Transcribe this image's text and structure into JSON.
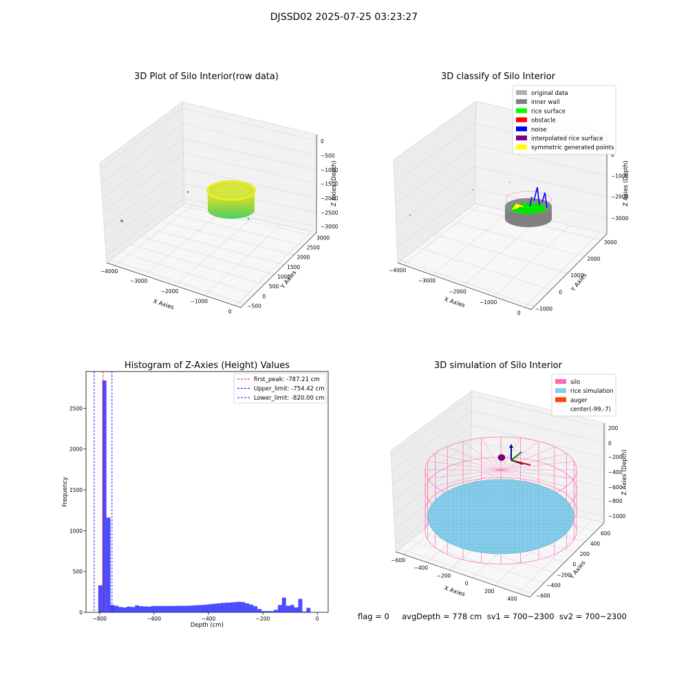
{
  "suptitle": "DJSSD02 2025-07-25 03:23:27",
  "status_text": "flag = 0     avgDepth = 778 cm  sv1 = 700~2300  sv2 = 700~2300",
  "panels": {
    "raw": {
      "title": "3D Plot of Silo Interior(row data)",
      "xlabel": "X Axies",
      "ylabel": "Y Axies",
      "zlabel": "Z Axies (Depth)",
      "xticks": [
        "−4000",
        "−3000",
        "−2000",
        "−1000",
        "0"
      ],
      "yticks": [
        "−500",
        "0",
        "500",
        "1000",
        "1500",
        "2000",
        "2500",
        "3000"
      ],
      "zticks": [
        "0",
        "−500",
        "−1000",
        "−1500",
        "−2000",
        "−2500",
        "−3000"
      ]
    },
    "classify": {
      "title": "3D classify of Silo Interior",
      "xlabel": "X Axies",
      "ylabel": "Y Axies",
      "zlabel": "Z Axies (Depth)",
      "xticks": [
        "−4000",
        "−3000",
        "−2000",
        "−1000",
        "0"
      ],
      "yticks": [
        "−1000",
        "0",
        "1000",
        "2000",
        "3000"
      ],
      "zticks": [
        "0",
        "−1000",
        "−2000",
        "−3000"
      ],
      "legend": [
        {
          "label": "original data",
          "color": "#b0b0b0"
        },
        {
          "label": "inner wall",
          "color": "#808080"
        },
        {
          "label": "rice surface",
          "color": "#00ff00"
        },
        {
          "label": "obstacle",
          "color": "#ff0000"
        },
        {
          "label": "noise",
          "color": "#0000ff"
        },
        {
          "label": "interpolated rice surface",
          "color": "#800080"
        },
        {
          "label": "symmetric generated points",
          "color": "#ffff00"
        }
      ]
    },
    "simulation": {
      "title": "3D simulation of Silo Interior",
      "xlabel": "X Axies",
      "ylabel": "Y Axies",
      "zlabel": "Z Axies (Depth)",
      "xticks": [
        "−600",
        "−400",
        "−200",
        "0",
        "200",
        "400"
      ],
      "yticks": [
        "−600",
        "−400",
        "−200",
        "0",
        "200",
        "400",
        "600"
      ],
      "zticks": [
        "200",
        "0",
        "−200",
        "−400",
        "−600",
        "−800",
        "−1000"
      ],
      "legend": [
        {
          "label": "silo",
          "color": "#ff69b4"
        },
        {
          "label": "rice simulation",
          "color": "#87ceeb"
        },
        {
          "label": "auger",
          "color": "#ff4500"
        },
        {
          "label": "center(-99,-7)",
          "color": ""
        }
      ]
    }
  },
  "chart_data": [
    {
      "type": "histogram",
      "title": "Histogram of Z-Axies (Height) Values",
      "xlabel": "Depth (cm)",
      "ylabel": "Frequency",
      "xlim": [
        -850,
        40
      ],
      "ylim": [
        0,
        2950
      ],
      "xticks": [
        -800,
        -600,
        -400,
        -200,
        0
      ],
      "yticks": [
        0,
        500,
        1000,
        1500,
        2000,
        2500
      ],
      "bar_color": "#0000ff",
      "bin_width": 15,
      "bins": [
        {
          "x": -820,
          "y": 0
        },
        {
          "x": -805,
          "y": 330
        },
        {
          "x": -790,
          "y": 2840
        },
        {
          "x": -775,
          "y": 1160
        },
        {
          "x": -760,
          "y": 90
        },
        {
          "x": -745,
          "y": 80
        },
        {
          "x": -730,
          "y": 65
        },
        {
          "x": -715,
          "y": 60
        },
        {
          "x": -700,
          "y": 70
        },
        {
          "x": -685,
          "y": 65
        },
        {
          "x": -670,
          "y": 85
        },
        {
          "x": -655,
          "y": 75
        },
        {
          "x": -640,
          "y": 72
        },
        {
          "x": -625,
          "y": 70
        },
        {
          "x": -610,
          "y": 78
        },
        {
          "x": -595,
          "y": 78
        },
        {
          "x": -580,
          "y": 78
        },
        {
          "x": -565,
          "y": 78
        },
        {
          "x": -550,
          "y": 78
        },
        {
          "x": -535,
          "y": 78
        },
        {
          "x": -520,
          "y": 80
        },
        {
          "x": -505,
          "y": 80
        },
        {
          "x": -490,
          "y": 80
        },
        {
          "x": -475,
          "y": 82
        },
        {
          "x": -460,
          "y": 85
        },
        {
          "x": -445,
          "y": 88
        },
        {
          "x": -430,
          "y": 90
        },
        {
          "x": -415,
          "y": 95
        },
        {
          "x": -400,
          "y": 100
        },
        {
          "x": -385,
          "y": 105
        },
        {
          "x": -370,
          "y": 110
        },
        {
          "x": -355,
          "y": 115
        },
        {
          "x": -340,
          "y": 118
        },
        {
          "x": -325,
          "y": 120
        },
        {
          "x": -310,
          "y": 125
        },
        {
          "x": -295,
          "y": 130
        },
        {
          "x": -280,
          "y": 125
        },
        {
          "x": -265,
          "y": 110
        },
        {
          "x": -250,
          "y": 95
        },
        {
          "x": -235,
          "y": 75
        },
        {
          "x": -220,
          "y": 40
        },
        {
          "x": -205,
          "y": 15
        },
        {
          "x": -190,
          "y": 15
        },
        {
          "x": -175,
          "y": 15
        },
        {
          "x": -160,
          "y": 30
        },
        {
          "x": -145,
          "y": 90
        },
        {
          "x": -130,
          "y": 180
        },
        {
          "x": -115,
          "y": 80
        },
        {
          "x": -100,
          "y": 90
        },
        {
          "x": -85,
          "y": 60
        },
        {
          "x": -70,
          "y": 165
        },
        {
          "x": -55,
          "y": 10
        },
        {
          "x": -40,
          "y": 55
        }
      ],
      "vlines": [
        {
          "label": "first_peak: -787.21 cm",
          "x": -787.21,
          "color": "#ff0000"
        },
        {
          "label": "Upper_limit: -754.42 cm",
          "x": -754.42,
          "color": "#0000ff"
        },
        {
          "label": "Lower_limit: -820.00 cm",
          "x": -820.0,
          "color": "#0000ff"
        }
      ],
      "legend_position": "upper right"
    }
  ]
}
